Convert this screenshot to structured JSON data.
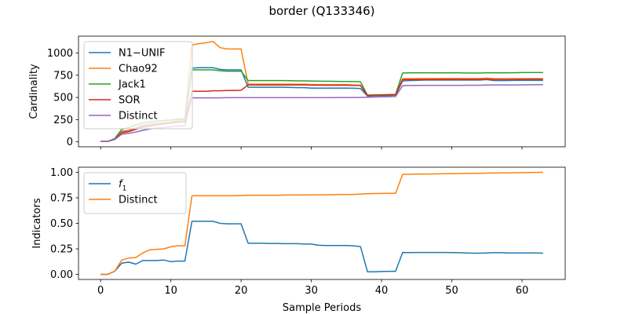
{
  "title": "border (Q133346)",
  "colors": {
    "blue": "#1f77b4",
    "orange": "#ff7f0e",
    "green": "#2ca02c",
    "red": "#d62728",
    "purple": "#9467bd"
  },
  "chart_data": [
    {
      "type": "line",
      "ylabel": "Cardinality",
      "xlabel": "",
      "xlim": [
        -3.15,
        66.15
      ],
      "ylim": [
        -56,
        1190
      ],
      "xticks": [
        0,
        10,
        20,
        30,
        40,
        50,
        60
      ],
      "xtick_labels_visible": false,
      "yticks": [
        0,
        250,
        500,
        750,
        1000
      ],
      "ytick_labels": [
        "0",
        "250",
        "500",
        "750",
        "1000"
      ],
      "legend_position": "upper-left",
      "grid": false,
      "x": [
        0,
        1,
        2,
        3,
        4,
        5,
        6,
        7,
        8,
        9,
        10,
        11,
        12,
        13,
        14,
        15,
        16,
        17,
        18,
        19,
        20,
        21,
        22,
        23,
        24,
        25,
        26,
        27,
        28,
        29,
        30,
        31,
        32,
        33,
        34,
        35,
        36,
        37,
        38,
        39,
        40,
        41,
        42,
        43,
        44,
        45,
        46,
        47,
        48,
        49,
        50,
        51,
        52,
        53,
        54,
        55,
        56,
        57,
        58,
        59,
        60,
        61,
        62,
        63
      ],
      "series": [
        {
          "name": "N1−UNIF",
          "color": "#1f77b4",
          "values": [
            5,
            5,
            30,
            110,
            120,
            150,
            175,
            185,
            200,
            205,
            215,
            225,
            230,
            830,
            835,
            835,
            835,
            815,
            810,
            810,
            810,
            615,
            615,
            615,
            615,
            615,
            615,
            612,
            610,
            610,
            605,
            605,
            605,
            605,
            605,
            605,
            603,
            600,
            515,
            518,
            520,
            522,
            525,
            685,
            690,
            692,
            695,
            695,
            695,
            695,
            695,
            695,
            695,
            695,
            695,
            700,
            690,
            690,
            690,
            692,
            692,
            692,
            692,
            692
          ]
        },
        {
          "name": "Chao92",
          "color": "#ff7f0e",
          "values": [
            5,
            5,
            30,
            120,
            130,
            160,
            190,
            200,
            210,
            215,
            225,
            240,
            245,
            1090,
            1105,
            1115,
            1130,
            1060,
            1045,
            1045,
            1045,
            650,
            650,
            650,
            650,
            650,
            650,
            650,
            648,
            648,
            646,
            645,
            645,
            645,
            645,
            645,
            640,
            638,
            525,
            528,
            530,
            532,
            533,
            710,
            712,
            712,
            713,
            713,
            713,
            713,
            713,
            713,
            713,
            713,
            713,
            718,
            710,
            710,
            710,
            712,
            712,
            712,
            712,
            712
          ]
        },
        {
          "name": "Jack1",
          "color": "#2ca02c",
          "values": [
            5,
            5,
            35,
            140,
            160,
            190,
            215,
            225,
            235,
            240,
            245,
            255,
            260,
            810,
            810,
            810,
            810,
            800,
            795,
            795,
            795,
            690,
            690,
            690,
            690,
            690,
            690,
            688,
            686,
            686,
            684,
            683,
            682,
            682,
            680,
            680,
            678,
            676,
            525,
            528,
            530,
            532,
            534,
            775,
            776,
            776,
            777,
            777,
            777,
            777,
            777,
            777,
            775,
            775,
            775,
            777,
            777,
            777,
            777,
            778,
            780,
            780,
            780,
            780
          ]
        },
        {
          "name": "SOR",
          "color": "#d62728",
          "values": [
            5,
            5,
            28,
            100,
            115,
            140,
            165,
            175,
            190,
            200,
            210,
            220,
            225,
            570,
            570,
            570,
            575,
            575,
            578,
            578,
            580,
            640,
            640,
            640,
            640,
            640,
            640,
            640,
            640,
            640,
            638,
            638,
            637,
            637,
            637,
            637,
            635,
            634,
            520,
            522,
            524,
            526,
            528,
            700,
            702,
            702,
            702,
            702,
            703,
            703,
            703,
            703,
            703,
            703,
            703,
            705,
            703,
            703,
            703,
            704,
            704,
            705,
            705,
            705
          ]
        },
        {
          "name": "Distinct",
          "color": "#9467bd",
          "values": [
            3,
            3,
            25,
            85,
            95,
            110,
            130,
            145,
            155,
            160,
            170,
            178,
            182,
            495,
            495,
            495,
            495,
            495,
            497,
            497,
            497,
            497,
            497,
            497,
            497,
            497,
            497,
            497,
            497,
            497,
            497,
            497,
            497,
            497,
            498,
            498,
            499,
            500,
            502,
            504,
            506,
            508,
            510,
            632,
            634,
            634,
            635,
            635,
            635,
            635,
            636,
            636,
            637,
            637,
            637,
            640,
            640,
            640,
            640,
            640,
            641,
            642,
            643,
            643
          ]
        }
      ]
    },
    {
      "type": "line",
      "ylabel": "Indicators",
      "xlabel": "Sample Periods",
      "xlim": [
        -3.15,
        66.15
      ],
      "ylim": [
        -0.05,
        1.05
      ],
      "xticks": [
        0,
        10,
        20,
        30,
        40,
        50,
        60
      ],
      "xtick_labels": [
        "0",
        "10",
        "20",
        "30",
        "40",
        "50",
        "60"
      ],
      "yticks": [
        0,
        0.25,
        0.5,
        0.75,
        1
      ],
      "ytick_labels": [
        "0.00",
        "0.25",
        "0.50",
        "0.75",
        "1.00"
      ],
      "legend_position": "upper-left",
      "grid": false,
      "x": [
        0,
        1,
        2,
        3,
        4,
        5,
        6,
        7,
        8,
        9,
        10,
        11,
        12,
        13,
        14,
        15,
        16,
        17,
        18,
        19,
        20,
        21,
        22,
        23,
        24,
        25,
        26,
        27,
        28,
        29,
        30,
        31,
        32,
        33,
        34,
        35,
        36,
        37,
        38,
        39,
        40,
        41,
        42,
        43,
        44,
        45,
        46,
        47,
        48,
        49,
        50,
        51,
        52,
        53,
        54,
        55,
        56,
        57,
        58,
        59,
        60,
        61,
        62,
        63
      ],
      "series": [
        {
          "name": "f",
          "name_subscript": "1",
          "color": "#1f77b4",
          "values": [
            0.0,
            0.0,
            0.03,
            0.11,
            0.12,
            0.1,
            0.135,
            0.135,
            0.135,
            0.14,
            0.125,
            0.13,
            0.13,
            0.52,
            0.52,
            0.52,
            0.52,
            0.5,
            0.495,
            0.495,
            0.495,
            0.305,
            0.305,
            0.305,
            0.303,
            0.303,
            0.301,
            0.301,
            0.301,
            0.297,
            0.297,
            0.285,
            0.283,
            0.283,
            0.283,
            0.282,
            0.28,
            0.272,
            0.025,
            0.025,
            0.028,
            0.03,
            0.03,
            0.215,
            0.214,
            0.215,
            0.215,
            0.215,
            0.215,
            0.215,
            0.213,
            0.212,
            0.21,
            0.208,
            0.208,
            0.21,
            0.212,
            0.212,
            0.21,
            0.21,
            0.21,
            0.21,
            0.21,
            0.208
          ]
        },
        {
          "name": "Distinct",
          "name_subscript": "",
          "color": "#ff7f0e",
          "values": [
            0.0,
            0.0,
            0.03,
            0.14,
            0.16,
            0.165,
            0.21,
            0.24,
            0.245,
            0.25,
            0.27,
            0.28,
            0.28,
            0.77,
            0.77,
            0.77,
            0.77,
            0.77,
            0.77,
            0.77,
            0.772,
            0.775,
            0.775,
            0.775,
            0.775,
            0.775,
            0.777,
            0.778,
            0.778,
            0.778,
            0.779,
            0.779,
            0.78,
            0.781,
            0.782,
            0.783,
            0.784,
            0.786,
            0.79,
            0.792,
            0.793,
            0.794,
            0.795,
            0.98,
            0.981,
            0.982,
            0.983,
            0.984,
            0.985,
            0.986,
            0.987,
            0.988,
            0.989,
            0.99,
            0.991,
            0.992,
            0.993,
            0.994,
            0.995,
            0.996,
            0.997,
            0.998,
            0.999,
            1.0
          ]
        }
      ]
    }
  ]
}
